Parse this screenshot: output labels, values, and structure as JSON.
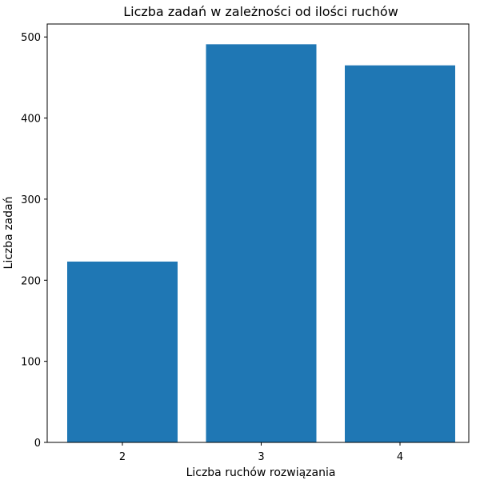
{
  "chart_data": {
    "type": "bar",
    "title": "Liczba zadań w zależności od ilości ruchów",
    "xlabel": "Liczba ruchów rozwiązania",
    "ylabel": "Liczba zadań",
    "categories": [
      "2",
      "3",
      "4"
    ],
    "values": [
      223,
      491,
      465
    ],
    "ylim": [
      0,
      516
    ],
    "yticks": [
      "0",
      "100",
      "200",
      "300",
      "400",
      "500"
    ],
    "grid": false,
    "bar_color": "#1f77b4"
  }
}
